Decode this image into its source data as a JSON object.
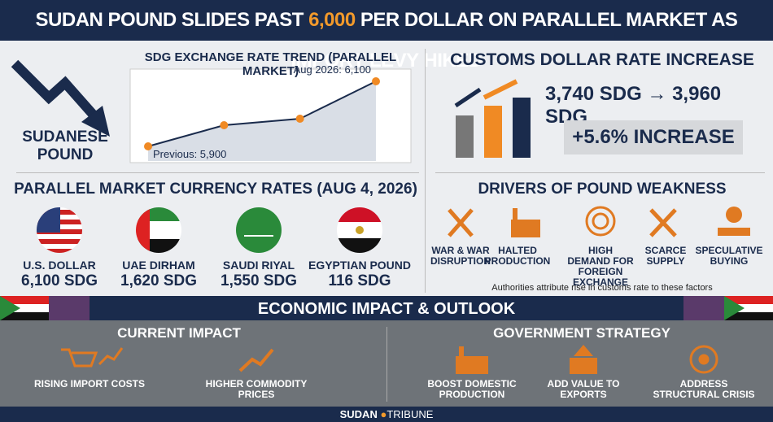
{
  "header": {
    "title_parts": [
      "SUDAN POUND SLIDES PAST ",
      "6,000",
      " PER DOLLAR ON PARALLEL MARKET AS IMPORT LEVY HIKED"
    ]
  },
  "trend": {
    "label": "SUDANESE POUND",
    "chart_data": {
      "type": "line",
      "title": "SDG EXCHANGE RATE TREND (PARALLEL MARKET)",
      "values": [
        5900,
        5965,
        5985,
        6100
      ],
      "value_labels": [
        "Previous: 5,900",
        null,
        null,
        "Aug 2026: 6,100"
      ],
      "color": "#f08a24"
    }
  },
  "customs": {
    "title": "CUSTOMS DOLLAR RATE INCREASE",
    "from": "3,740 SDG",
    "to": "3,960 SDG",
    "change": "+5.6% INCREASE"
  },
  "rates": {
    "title": "PARALLEL MARKET CURRENCY RATES (AUG 4, 2026)",
    "items": [
      {
        "name": "U.S. DOLLAR",
        "value": "6,100 SDG"
      },
      {
        "name": "UAE DIRHAM",
        "value": "1,620 SDG"
      },
      {
        "name": "SAUDI RIYAL",
        "value": "1,550 SDG"
      },
      {
        "name": "EGYPTIAN POUND",
        "value": "116 SDG"
      }
    ]
  },
  "drivers": {
    "title": "DRIVERS OF POUND WEAKNESS",
    "items": [
      "WAR & WAR DISRUPTION",
      "HALTED PRODUCTION",
      "HIGH DEMAND FOR FOREIGN EXCHANGE",
      "SCARCE SUPPLY",
      "SPECULATIVE BUYING"
    ],
    "note": "Authorities attribute rise in customs rate to these factors"
  },
  "impact": {
    "title": "ECONOMIC IMPACT & OUTLOOK",
    "current": {
      "title": "CURRENT IMPACT",
      "items": [
        "RISING IMPORT COSTS",
        "HIGHER COMMODITY PRICES"
      ]
    },
    "strategy": {
      "title": "GOVERNMENT STRATEGY",
      "items": [
        "BOOST DOMESTIC PRODUCTION",
        "ADD VALUE TO EXPORTS",
        "ADDRESS STRUCTURAL CRISIS"
      ]
    }
  },
  "footer": {
    "brand": "SUDAN",
    "brand2": "TRIBUNE"
  }
}
